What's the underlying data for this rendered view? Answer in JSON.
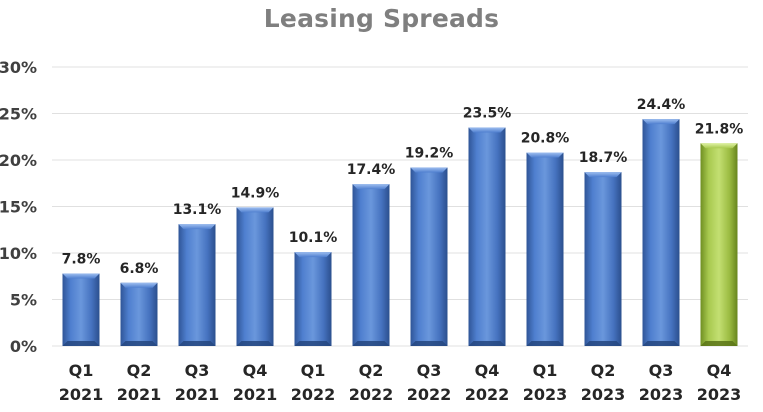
{
  "chart_data": {
    "type": "bar",
    "title": "Leasing Spreads",
    "categories": [
      [
        "Q1",
        "2021"
      ],
      [
        "Q2",
        "2021"
      ],
      [
        "Q3",
        "2021"
      ],
      [
        "Q4",
        "2021"
      ],
      [
        "Q1",
        "2022"
      ],
      [
        "Q2",
        "2022"
      ],
      [
        "Q3",
        "2022"
      ],
      [
        "Q4",
        "2022"
      ],
      [
        "Q1",
        "2023"
      ],
      [
        "Q2",
        "2023"
      ],
      [
        "Q3",
        "2023"
      ],
      [
        "Q4",
        "2023"
      ]
    ],
    "values": [
      7.8,
      6.8,
      13.1,
      14.9,
      10.1,
      17.4,
      19.2,
      23.5,
      20.8,
      18.7,
      24.4,
      21.8
    ],
    "data_labels": [
      "7.8%",
      "6.8%",
      "13.1%",
      "14.9%",
      "10.1%",
      "17.4%",
      "19.2%",
      "23.5%",
      "20.8%",
      "18.7%",
      "24.4%",
      "21.8%"
    ],
    "highlight_index": 11,
    "ylim": [
      0,
      30
    ],
    "yticks": [
      0,
      5,
      10,
      15,
      20,
      25,
      30
    ],
    "ytick_labels": [
      "0%",
      "5%",
      "10%",
      "15%",
      "20%",
      "25%",
      "30%"
    ],
    "grid": true,
    "colors": {
      "bar": "#4a78c1",
      "bar_highlight": "#9bbb3f",
      "grid": "#e0e0e0",
      "title": "#7f7f7f"
    },
    "xlabel": "",
    "ylabel": ""
  }
}
